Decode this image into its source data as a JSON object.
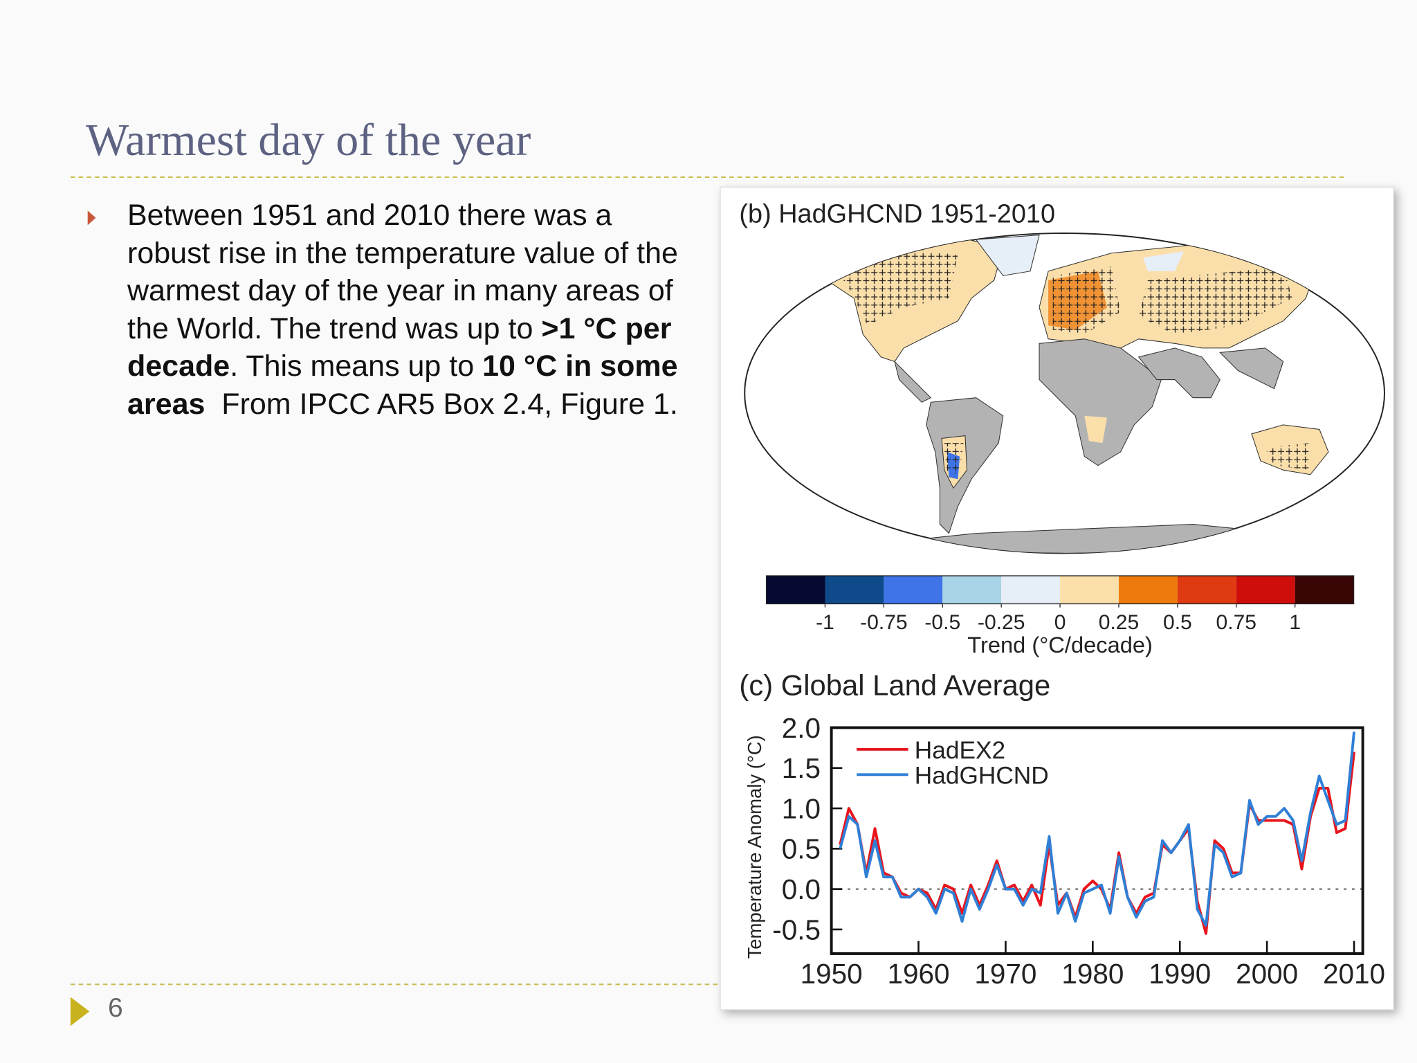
{
  "slide": {
    "title": "Warmest day of the year",
    "bullet": [
      {
        "text": "Between 1951 and 2010 there was a robust rise in the temperature value of the warmest day of the year in many areas of the World. The trend was up to ",
        "bold": false
      },
      {
        "text": ">1 °C per decade",
        "bold": true
      },
      {
        "text": ". This means up to ",
        "bold": false
      },
      {
        "text": "10 °C in some areas",
        "bold": true
      },
      {
        "text": "  From IPCC AR5 Box 2.4, Figure 1.",
        "bold": false
      }
    ],
    "page_number": "6"
  },
  "figure": {
    "map_title": "(b) HadGHCND 1951-2010",
    "colorbar": {
      "colors": [
        "#050a30",
        "#0f4a8a",
        "#3f74e8",
        "#a9d3e6",
        "#e6eef8",
        "#fbdfab",
        "#ee7a0e",
        "#df3a12",
        "#cf0d0b",
        "#3a0505"
      ],
      "lim": [
        -1.25,
        1.25
      ],
      "ticks": [
        -1,
        -0.75,
        -0.5,
        -0.25,
        0,
        0.25,
        0.5,
        0.75,
        1
      ],
      "label": "Trend (°C/decade)"
    }
  },
  "chart_data": {
    "type": "line",
    "title": "(c) Global Land Average",
    "y_label": "Temperature Anomaly (°C)",
    "x": [
      1951,
      1952,
      1953,
      1954,
      1955,
      1956,
      1957,
      1958,
      1959,
      1960,
      1961,
      1962,
      1963,
      1964,
      1965,
      1966,
      1967,
      1968,
      1969,
      1970,
      1971,
      1972,
      1973,
      1974,
      1975,
      1976,
      1977,
      1978,
      1979,
      1980,
      1981,
      1982,
      1983,
      1984,
      1985,
      1986,
      1987,
      1988,
      1989,
      1990,
      1991,
      1992,
      1993,
      1994,
      1995,
      1996,
      1997,
      1998,
      1999,
      2000,
      2001,
      2002,
      2003,
      2004,
      2005,
      2006,
      2007,
      2008,
      2009,
      2010
    ],
    "series": [
      {
        "name": "HadEX2",
        "color": "#e8141c",
        "values": [
          0.55,
          1.0,
          0.8,
          0.2,
          0.75,
          0.2,
          0.15,
          -0.05,
          -0.1,
          0.0,
          -0.05,
          -0.25,
          0.05,
          0.0,
          -0.3,
          0.05,
          -0.2,
          0.05,
          0.35,
          0.0,
          0.05,
          -0.15,
          0.05,
          -0.2,
          0.55,
          -0.2,
          -0.05,
          -0.35,
          0.0,
          0.1,
          0.0,
          -0.25,
          0.45,
          -0.1,
          -0.3,
          -0.1,
          -0.05,
          0.55,
          0.45,
          0.6,
          0.75,
          -0.15,
          -0.55,
          0.6,
          0.5,
          0.2,
          0.2,
          1.05,
          0.85,
          0.85,
          0.85,
          0.85,
          0.8,
          0.25,
          0.9,
          1.25,
          1.25,
          0.7,
          0.75,
          1.7
        ]
      },
      {
        "name": "HadGHCND",
        "color": "#2f7fd6",
        "values": [
          0.5,
          0.9,
          0.8,
          0.15,
          0.6,
          0.15,
          0.15,
          -0.1,
          -0.1,
          0.0,
          -0.1,
          -0.3,
          0.0,
          -0.05,
          -0.4,
          0.0,
          -0.25,
          0.0,
          0.3,
          0.0,
          0.0,
          -0.2,
          0.0,
          -0.05,
          0.65,
          -0.3,
          -0.05,
          -0.4,
          -0.05,
          0.0,
          0.05,
          -0.3,
          0.4,
          -0.1,
          -0.35,
          -0.15,
          -0.1,
          0.6,
          0.45,
          0.6,
          0.8,
          -0.25,
          -0.45,
          0.55,
          0.45,
          0.15,
          0.2,
          1.1,
          0.8,
          0.9,
          0.9,
          1.0,
          0.85,
          0.35,
          0.95,
          1.4,
          1.1,
          0.8,
          0.85,
          1.95
        ]
      }
    ],
    "xlim": [
      1950,
      2011
    ],
    "xticks": [
      1950,
      1960,
      1970,
      1980,
      1990,
      2000,
      2010
    ],
    "ylim": [
      -0.8,
      2.0
    ],
    "yticks": [
      {
        "value": 2,
        "label": "2.0"
      },
      1.5,
      {
        "value": 1,
        "label": "1.0"
      },
      0.5,
      {
        "value": 0,
        "label": "0.0"
      },
      -0.5
    ],
    "reference_line": 0
  }
}
